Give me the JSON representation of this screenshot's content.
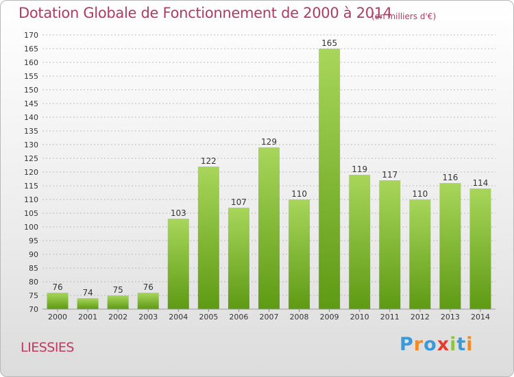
{
  "title": "Dotation Globale de Fonctionnement de 2000 à 2014",
  "subtitle": "(en milliers d'€)",
  "place": "LIESSIES",
  "logo": {
    "letters": [
      "P",
      "r",
      "o",
      "x",
      "i",
      "t",
      "i"
    ],
    "colors": [
      "#3a9ad9",
      "#f08a24",
      "#3a9ad9",
      "#e63c2e",
      "#8cc63f",
      "#3a9ad9",
      "#f08a24"
    ]
  },
  "colors": {
    "bar_top": "#a8d65a",
    "bar_bottom": "#5e9a14",
    "grid": "#bbbbbb",
    "title": "#b03a63"
  },
  "chart_data": {
    "type": "bar",
    "title": "Dotation Globale de Fonctionnement de 2000 à 2014",
    "subtitle": "(en milliers d'€)",
    "categories": [
      "2000",
      "2001",
      "2002",
      "2003",
      "2004",
      "2005",
      "2006",
      "2007",
      "2008",
      "2009",
      "2010",
      "2011",
      "2012",
      "2013",
      "2014"
    ],
    "values": [
      76,
      74,
      75,
      76,
      103,
      122,
      107,
      129,
      110,
      165,
      119,
      117,
      110,
      116,
      114
    ],
    "ylim": [
      70,
      170
    ],
    "ytick_step": 5,
    "grid": true,
    "grid_axis": "y",
    "xlabel": "",
    "ylabel": ""
  }
}
